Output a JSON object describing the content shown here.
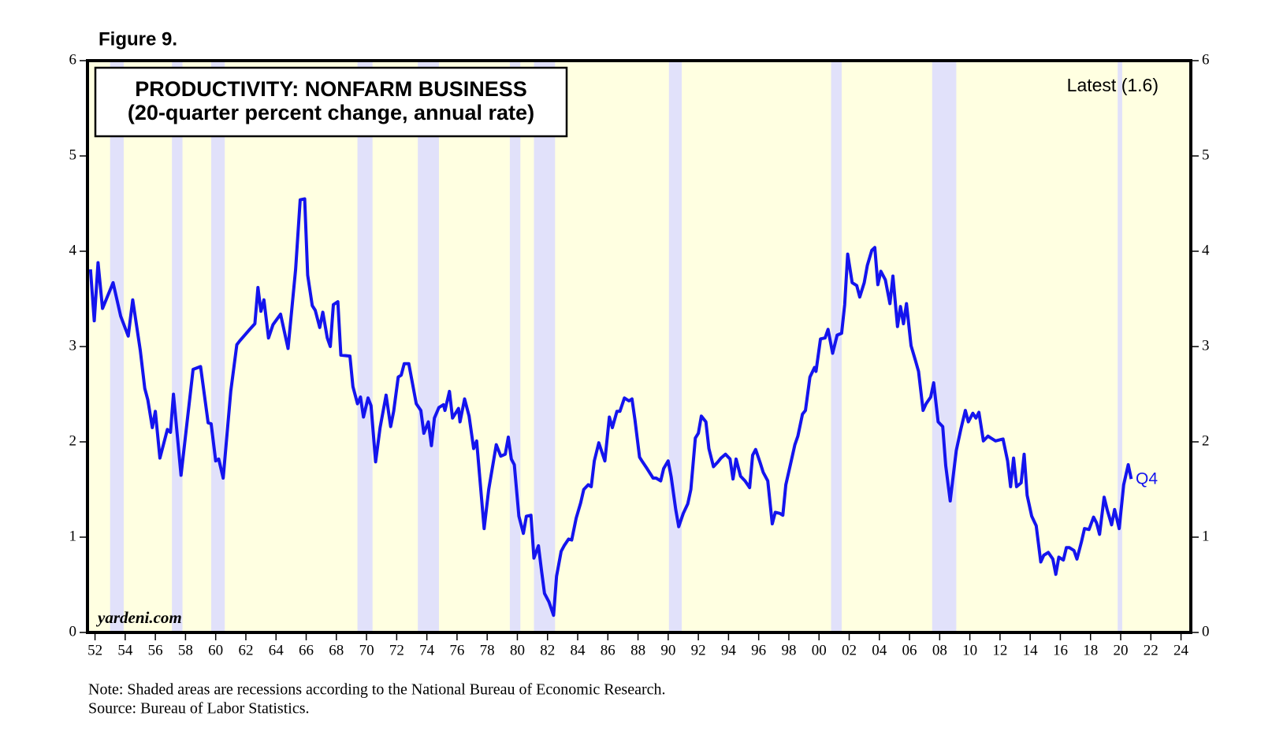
{
  "chart_data": {
    "type": "line",
    "figure_label": "Figure 9.",
    "title": "PRODUCTIVITY: NONFARM BUSINESS",
    "subtitle": "(20-quarter percent change, annual rate)",
    "annotations": {
      "latest": "Latest (1.6)",
      "end_label": "Q4",
      "source_site": "yardeni.com"
    },
    "notes": [
      "Note: Shaded areas are recessions according to the National Bureau of Economic Research.",
      "Source: Bureau of Labor Statistics."
    ],
    "recessions": [
      [
        1953.0,
        1953.9
      ],
      [
        1957.1,
        1957.8
      ],
      [
        1959.7,
        1960.6
      ],
      [
        1969.4,
        1970.4
      ],
      [
        1973.4,
        1974.8
      ],
      [
        1979.5,
        1980.2
      ],
      [
        1981.1,
        1982.5
      ],
      [
        1990.05,
        1990.9
      ],
      [
        2000.8,
        2001.5
      ],
      [
        2007.5,
        2009.1
      ],
      [
        2019.8,
        2020.1
      ]
    ],
    "recession_color": "#e1e1fa",
    "background": "#ffffe1",
    "xlim": [
      1951.5,
      2024.65
    ],
    "ylim": [
      0,
      6
    ],
    "yticks": [
      0,
      1,
      2,
      3,
      4,
      5,
      6
    ],
    "xticks": [
      {
        "value": 1952,
        "label": "52"
      },
      {
        "value": 1954,
        "label": "54"
      },
      {
        "value": 1956,
        "label": "56"
      },
      {
        "value": 1958,
        "label": "58"
      },
      {
        "value": 1960,
        "label": "60"
      },
      {
        "value": 1962,
        "label": "62"
      },
      {
        "value": 1964,
        "label": "64"
      },
      {
        "value": 1966,
        "label": "66"
      },
      {
        "value": 1968,
        "label": "68"
      },
      {
        "value": 1970,
        "label": "70"
      },
      {
        "value": 1972,
        "label": "72"
      },
      {
        "value": 1974,
        "label": "74"
      },
      {
        "value": 1976,
        "label": "76"
      },
      {
        "value": 1978,
        "label": "78"
      },
      {
        "value": 1980,
        "label": "80"
      },
      {
        "value": 1982,
        "label": "82"
      },
      {
        "value": 1984,
        "label": "84"
      },
      {
        "value": 1986,
        "label": "86"
      },
      {
        "value": 1988,
        "label": "88"
      },
      {
        "value": 1990,
        "label": "90"
      },
      {
        "value": 1992,
        "label": "92"
      },
      {
        "value": 1994,
        "label": "94"
      },
      {
        "value": 1996,
        "label": "96"
      },
      {
        "value": 1998,
        "label": "98"
      },
      {
        "value": 2000,
        "label": "00"
      },
      {
        "value": 2002,
        "label": "02"
      },
      {
        "value": 2004,
        "label": "04"
      },
      {
        "value": 2006,
        "label": "06"
      },
      {
        "value": 2008,
        "label": "08"
      },
      {
        "value": 2010,
        "label": "10"
      },
      {
        "value": 2012,
        "label": "12"
      },
      {
        "value": 2014,
        "label": "14"
      },
      {
        "value": 2016,
        "label": "16"
      },
      {
        "value": 2018,
        "label": "18"
      },
      {
        "value": 2020,
        "label": "20"
      },
      {
        "value": 2022,
        "label": "22"
      },
      {
        "value": 2024,
        "label": "24"
      }
    ],
    "series": [
      {
        "color": "#1414ee",
        "x": [
          1951.7,
          1951.95,
          1952.2,
          1952.5,
          1953.2,
          1953.7,
          1954.2,
          1954.5,
          1955.0,
          1955.3,
          1955.5,
          1955.8,
          1956.0,
          1956.3,
          1956.8,
          1957.0,
          1957.2,
          1957.7,
          1958.5,
          1959.0,
          1959.5,
          1959.7,
          1960.0,
          1960.2,
          1960.5,
          1961.0,
          1961.4,
          1961.6,
          1962.2,
          1962.6,
          1962.8,
          1963.0,
          1963.2,
          1963.5,
          1963.8,
          1964.3,
          1964.8,
          1965.3,
          1965.6,
          1965.9,
          1966.1,
          1966.4,
          1966.6,
          1966.9,
          1967.1,
          1967.4,
          1967.6,
          1967.8,
          1968.1,
          1968.3,
          1968.9,
          1969.1,
          1969.4,
          1969.6,
          1969.8,
          1970.1,
          1970.3,
          1970.6,
          1970.9,
          1971.3,
          1971.6,
          1971.8,
          1972.1,
          1972.3,
          1972.5,
          1972.8,
          1973.3,
          1973.6,
          1973.8,
          1974.1,
          1974.3,
          1974.5,
          1974.8,
          1975.1,
          1975.2,
          1975.5,
          1975.7,
          1976.1,
          1976.2,
          1976.5,
          1976.8,
          1977.1,
          1977.3,
          1977.8,
          1978.1,
          1978.6,
          1978.9,
          1979.2,
          1979.4,
          1979.6,
          1979.8,
          1980.1,
          1980.4,
          1980.6,
          1980.9,
          1981.1,
          1981.4,
          1981.6,
          1981.8,
          1982.1,
          1982.4,
          1982.6,
          1982.9,
          1983.1,
          1983.4,
          1983.6,
          1983.9,
          1984.2,
          1984.4,
          1984.7,
          1984.9,
          1985.1,
          1985.4,
          1985.8,
          1986.1,
          1986.3,
          1986.6,
          1986.8,
          1987.1,
          1987.4,
          1987.6,
          1987.8,
          1988.1,
          1988.3,
          1988.6,
          1989.0,
          1989.2,
          1989.5,
          1989.7,
          1990.0,
          1990.2,
          1990.5,
          1990.7,
          1991.0,
          1991.3,
          1991.5,
          1991.8,
          1992.0,
          1992.2,
          1992.5,
          1992.7,
          1993.0,
          1993.3,
          1993.5,
          1993.8,
          1994.1,
          1994.3,
          1994.5,
          1994.8,
          1995.1,
          1995.4,
          1995.6,
          1995.8,
          1996.1,
          1996.3,
          1996.6,
          1996.9,
          1997.1,
          1997.4,
          1997.6,
          1997.8,
          1998.1,
          1998.4,
          1998.6,
          1998.9,
          1999.1,
          1999.4,
          1999.7,
          1999.8,
          2000.1,
          2000.4,
          2000.6,
          2000.9,
          2001.2,
          2001.5,
          2001.7,
          2001.9,
          2002.2,
          2002.5,
          2002.7,
          2003.0,
          2003.2,
          2003.5,
          2003.7,
          2003.9,
          2004.1,
          2004.4,
          2004.7,
          2004.9,
          2005.2,
          2005.4,
          2005.6,
          2005.8,
          2006.1,
          2006.4,
          2006.6,
          2006.9,
          2007.1,
          2007.4,
          2007.6,
          2007.9,
          2008.2,
          2008.4,
          2008.7,
          2008.9,
          2009.1,
          2009.4,
          2009.7,
          2009.9,
          2010.2,
          2010.4,
          2010.6,
          2010.9,
          2011.2,
          2011.4,
          2011.7,
          2012.2,
          2012.5,
          2012.7,
          2012.9,
          2013.1,
          2013.4,
          2013.6,
          2013.8,
          2014.1,
          2014.4,
          2014.7,
          2014.9,
          2015.2,
          2015.5,
          2015.7,
          2015.9,
          2016.2,
          2016.4,
          2016.6,
          2016.9,
          2017.1,
          2017.4,
          2017.6,
          2017.9,
          2018.2,
          2018.4,
          2018.6,
          2018.9,
          2019.1,
          2019.4,
          2019.6,
          2019.9,
          2020.2,
          2020.5,
          2020.7
        ],
        "values": [
          3.81,
          3.27,
          3.88,
          3.4,
          3.67,
          3.32,
          3.11,
          3.49,
          2.96,
          2.56,
          2.44,
          2.15,
          2.32,
          1.83,
          2.13,
          2.1,
          2.5,
          1.65,
          2.76,
          2.79,
          2.2,
          2.19,
          1.8,
          1.82,
          1.62,
          2.53,
          3.02,
          3.06,
          3.17,
          3.24,
          3.62,
          3.37,
          3.49,
          3.09,
          3.23,
          3.34,
          2.98,
          3.81,
          4.54,
          4.55,
          3.75,
          3.43,
          3.38,
          3.2,
          3.36,
          3.09,
          3.0,
          3.44,
          3.47,
          2.91,
          2.9,
          2.58,
          2.4,
          2.47,
          2.26,
          2.46,
          2.38,
          1.79,
          2.15,
          2.49,
          2.16,
          2.32,
          2.68,
          2.7,
          2.82,
          2.82,
          2.4,
          2.33,
          2.09,
          2.21,
          1.96,
          2.25,
          2.36,
          2.39,
          2.33,
          2.53,
          2.25,
          2.35,
          2.21,
          2.45,
          2.27,
          1.93,
          2.01,
          1.09,
          1.5,
          1.97,
          1.85,
          1.87,
          2.05,
          1.82,
          1.76,
          1.22,
          1.04,
          1.22,
          1.23,
          0.78,
          0.91,
          0.65,
          0.41,
          0.32,
          0.18,
          0.59,
          0.85,
          0.91,
          0.98,
          0.97,
          1.2,
          1.36,
          1.5,
          1.55,
          1.53,
          1.8,
          1.99,
          1.8,
          2.26,
          2.15,
          2.32,
          2.32,
          2.46,
          2.43,
          2.45,
          2.23,
          1.84,
          1.79,
          1.72,
          1.62,
          1.62,
          1.59,
          1.72,
          1.8,
          1.63,
          1.29,
          1.11,
          1.25,
          1.35,
          1.5,
          2.04,
          2.09,
          2.27,
          2.21,
          1.93,
          1.74,
          1.79,
          1.83,
          1.87,
          1.82,
          1.61,
          1.82,
          1.64,
          1.59,
          1.52,
          1.86,
          1.92,
          1.78,
          1.68,
          1.59,
          1.14,
          1.26,
          1.25,
          1.23,
          1.55,
          1.76,
          1.97,
          2.06,
          2.29,
          2.33,
          2.68,
          2.78,
          2.74,
          3.08,
          3.09,
          3.18,
          2.93,
          3.12,
          3.14,
          3.44,
          3.97,
          3.67,
          3.64,
          3.52,
          3.67,
          3.85,
          4.01,
          4.04,
          3.65,
          3.79,
          3.7,
          3.45,
          3.74,
          3.21,
          3.42,
          3.24,
          3.45,
          3.01,
          2.85,
          2.74,
          2.33,
          2.4,
          2.47,
          2.62,
          2.21,
          2.16,
          1.75,
          1.38,
          1.65,
          1.91,
          2.13,
          2.33,
          2.21,
          2.3,
          2.25,
          2.31,
          2.01,
          2.06,
          2.04,
          2.01,
          2.03,
          1.8,
          1.53,
          1.83,
          1.53,
          1.57,
          1.87,
          1.44,
          1.22,
          1.12,
          0.74,
          0.81,
          0.84,
          0.77,
          0.61,
          0.79,
          0.76,
          0.89,
          0.89,
          0.86,
          0.77,
          0.95,
          1.09,
          1.08,
          1.21,
          1.15,
          1.03,
          1.42,
          1.29,
          1.13,
          1.29,
          1.09,
          1.55,
          1.76,
          1.61
        ]
      }
    ]
  }
}
